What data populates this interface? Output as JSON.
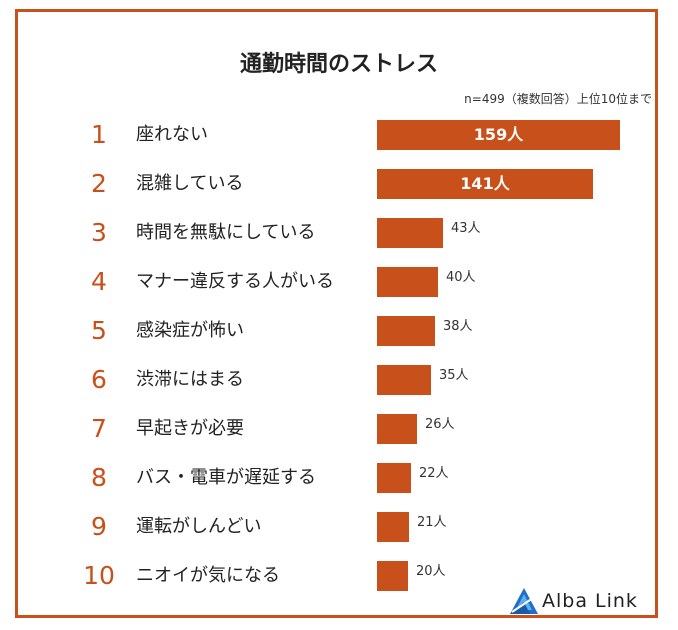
{
  "chart_data": {
    "type": "bar",
    "orientation": "horizontal",
    "title": "通勤時間のストレス",
    "note": "n=499（複数回答）上位10位まで",
    "unit": "人",
    "categories": [
      "座れない",
      "混雑している",
      "時間を無駄にしている",
      "マナー違反する人がいる",
      "感染症が怖い",
      "渋滞にはまる",
      "早起きが必要",
      "バス・電車が遅延する",
      "運転がしんどい",
      "ニオイが気になる"
    ],
    "ranks": [
      "1",
      "2",
      "3",
      "4",
      "5",
      "6",
      "7",
      "8",
      "9",
      "10"
    ],
    "values": [
      159,
      141,
      43,
      40,
      38,
      35,
      26,
      22,
      21,
      20
    ],
    "value_labels": [
      "159人",
      "141人",
      "43人",
      "40人",
      "38人",
      "35人",
      "26人",
      "22人",
      "21人",
      "20人"
    ],
    "xlim": [
      0,
      170
    ],
    "bar_color": "#c8501a"
  },
  "brand": {
    "name": "Alba Link",
    "accent": "#1e6fc8"
  }
}
